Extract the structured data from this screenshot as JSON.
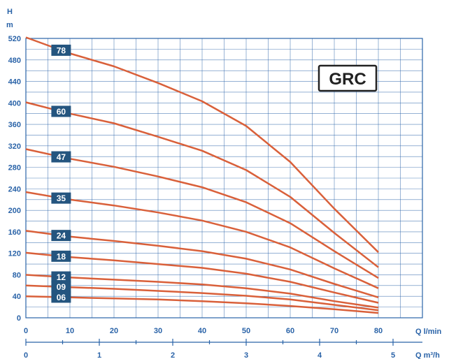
{
  "chart_data": {
    "type": "line",
    "title": "GRC",
    "ylabel_top": "H",
    "ylabel_bottom": "m",
    "xlabel": "Q l/min",
    "x2label": "Q m³/h",
    "ylim": [
      0,
      520
    ],
    "xlim": [
      0,
      90
    ],
    "x2lim": [
      0,
      5.4
    ],
    "yticks": [
      0,
      40,
      80,
      120,
      160,
      200,
      240,
      280,
      320,
      360,
      400,
      440,
      480,
      520
    ],
    "xticks": [
      0,
      10,
      20,
      30,
      40,
      50,
      60,
      70,
      80
    ],
    "x2ticks": [
      0,
      1,
      2,
      3,
      4,
      5
    ],
    "grid": true,
    "colors": {
      "grid": "#2a63a8",
      "curve": "#d9603a",
      "label_bg": "#24557f",
      "text": "#2a63a8"
    },
    "series": [
      {
        "name": "78",
        "x": [
          0,
          10,
          20,
          30,
          40,
          50,
          60,
          70,
          80
        ],
        "y": [
          522,
          492,
          468,
          437,
          403,
          357,
          290,
          203,
          122
        ]
      },
      {
        "name": "60",
        "x": [
          0,
          10,
          20,
          30,
          40,
          50,
          60,
          70,
          80
        ],
        "y": [
          401,
          380,
          362,
          337,
          311,
          275,
          225,
          158,
          94
        ]
      },
      {
        "name": "47",
        "x": [
          0,
          10,
          20,
          30,
          40,
          50,
          60,
          70,
          80
        ],
        "y": [
          314,
          296,
          281,
          263,
          243,
          215,
          176,
          124,
          74
        ]
      },
      {
        "name": "35",
        "x": [
          0,
          10,
          20,
          30,
          40,
          50,
          60,
          70,
          80
        ],
        "y": [
          234,
          220,
          209,
          196,
          181,
          160,
          131,
          92,
          55
        ]
      },
      {
        "name": "24",
        "x": [
          0,
          10,
          20,
          30,
          40,
          50,
          60,
          70,
          80
        ],
        "y": [
          162,
          151,
          143,
          134,
          124,
          110,
          90,
          63,
          38
        ]
      },
      {
        "name": "18",
        "x": [
          0,
          10,
          20,
          30,
          40,
          50,
          60,
          70,
          80
        ],
        "y": [
          121,
          113,
          107,
          100,
          93,
          82,
          67,
          47,
          28
        ]
      },
      {
        "name": "12",
        "x": [
          0,
          10,
          20,
          30,
          40,
          50,
          60,
          70,
          80
        ],
        "y": [
          80,
          75,
          71,
          67,
          62,
          55,
          45,
          31,
          19
        ]
      },
      {
        "name": "09",
        "x": [
          0,
          10,
          20,
          30,
          40,
          50,
          60,
          70,
          80
        ],
        "y": [
          60,
          57,
          54,
          50,
          46,
          41,
          34,
          24,
          14
        ]
      },
      {
        "name": "06",
        "x": [
          0,
          10,
          20,
          30,
          40,
          50,
          60,
          70,
          80
        ],
        "y": [
          40,
          38,
          36,
          34,
          31,
          27,
          22,
          16,
          9
        ]
      }
    ]
  }
}
